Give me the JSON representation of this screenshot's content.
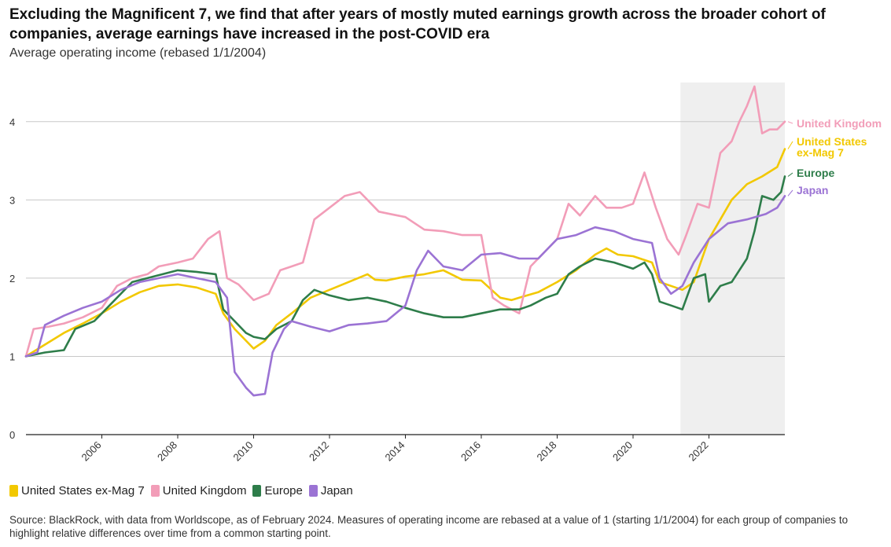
{
  "title": "Excluding the Magnificent 7, we find that after years of mostly muted earnings growth across the broader cohort of companies, average earnings have increased in the post-COVID era",
  "subtitle": "Average operating income (rebased 1/1/2004)",
  "source": "Source: BlackRock, with data from Worldscope, as of February 2024. Measures of operating income are rebased at a value of 1 (starting 1/1/2004) for each group of companies to highlight relative differences over time from a common starting point.",
  "chart_data": {
    "type": "line",
    "title": "Excluding the Magnificent 7, we find that after years of mostly muted earnings growth across the broader cohort of companies, average earnings have increased in the post-COVID era",
    "subtitle": "Average operating income (rebased 1/1/2004)",
    "xlabel": "",
    "ylabel": "",
    "xlim": [
      2004,
      2024
    ],
    "ylim": [
      0,
      4.5
    ],
    "x_ticks": [
      2006,
      2008,
      2010,
      2012,
      2014,
      2016,
      2018,
      2020,
      2022
    ],
    "y_ticks": [
      0,
      1,
      2,
      3,
      4
    ],
    "grid": "horizontal",
    "legend_position": "bottom-left",
    "highlight_region": {
      "from": 2021.25,
      "to": 2024
    },
    "series": [
      {
        "name": "United States ex-Mag 7",
        "end_label": [
          "United States",
          "ex-Mag 7"
        ],
        "color": "#f2c800",
        "points": [
          [
            2004.0,
            1.0
          ],
          [
            2004.5,
            1.15
          ],
          [
            2005.0,
            1.3
          ],
          [
            2005.5,
            1.42
          ],
          [
            2006.0,
            1.55
          ],
          [
            2006.5,
            1.7
          ],
          [
            2007.0,
            1.82
          ],
          [
            2007.5,
            1.9
          ],
          [
            2008.0,
            1.92
          ],
          [
            2008.5,
            1.88
          ],
          [
            2009.0,
            1.8
          ],
          [
            2009.2,
            1.55
          ],
          [
            2009.5,
            1.35
          ],
          [
            2009.8,
            1.2
          ],
          [
            2010.0,
            1.1
          ],
          [
            2010.3,
            1.2
          ],
          [
            2010.6,
            1.4
          ],
          [
            2011.0,
            1.55
          ],
          [
            2011.5,
            1.75
          ],
          [
            2012.0,
            1.85
          ],
          [
            2012.5,
            1.95
          ],
          [
            2013.0,
            2.05
          ],
          [
            2013.2,
            1.98
          ],
          [
            2013.5,
            1.97
          ],
          [
            2014.0,
            2.02
          ],
          [
            2014.5,
            2.05
          ],
          [
            2015.0,
            2.1
          ],
          [
            2015.5,
            1.98
          ],
          [
            2016.0,
            1.97
          ],
          [
            2016.5,
            1.75
          ],
          [
            2016.8,
            1.72
          ],
          [
            2017.0,
            1.75
          ],
          [
            2017.5,
            1.82
          ],
          [
            2018.0,
            1.95
          ],
          [
            2018.5,
            2.1
          ],
          [
            2019.0,
            2.3
          ],
          [
            2019.3,
            2.38
          ],
          [
            2019.6,
            2.3
          ],
          [
            2020.0,
            2.28
          ],
          [
            2020.5,
            2.2
          ],
          [
            2020.7,
            1.95
          ],
          [
            2021.0,
            1.9
          ],
          [
            2021.3,
            1.85
          ],
          [
            2021.6,
            1.95
          ],
          [
            2022.0,
            2.5
          ],
          [
            2022.3,
            2.75
          ],
          [
            2022.6,
            3.0
          ],
          [
            2023.0,
            3.2
          ],
          [
            2023.4,
            3.3
          ],
          [
            2023.8,
            3.42
          ],
          [
            2024.0,
            3.65
          ]
        ]
      },
      {
        "name": "United Kingdom",
        "end_label": [
          "United Kingdom"
        ],
        "color": "#f29db8",
        "points": [
          [
            2004.0,
            1.0
          ],
          [
            2004.2,
            1.35
          ],
          [
            2004.6,
            1.38
          ],
          [
            2005.0,
            1.42
          ],
          [
            2005.5,
            1.5
          ],
          [
            2006.0,
            1.62
          ],
          [
            2006.4,
            1.9
          ],
          [
            2006.8,
            2.0
          ],
          [
            2007.2,
            2.05
          ],
          [
            2007.5,
            2.15
          ],
          [
            2008.0,
            2.2
          ],
          [
            2008.4,
            2.25
          ],
          [
            2008.8,
            2.5
          ],
          [
            2009.1,
            2.6
          ],
          [
            2009.3,
            2.0
          ],
          [
            2009.6,
            1.92
          ],
          [
            2010.0,
            1.72
          ],
          [
            2010.4,
            1.8
          ],
          [
            2010.7,
            2.1
          ],
          [
            2011.0,
            2.15
          ],
          [
            2011.3,
            2.2
          ],
          [
            2011.6,
            2.75
          ],
          [
            2012.0,
            2.9
          ],
          [
            2012.4,
            3.05
          ],
          [
            2012.8,
            3.1
          ],
          [
            2013.0,
            3.0
          ],
          [
            2013.3,
            2.85
          ],
          [
            2013.6,
            2.82
          ],
          [
            2014.0,
            2.78
          ],
          [
            2014.5,
            2.62
          ],
          [
            2015.0,
            2.6
          ],
          [
            2015.5,
            2.55
          ],
          [
            2016.0,
            2.55
          ],
          [
            2016.3,
            1.75
          ],
          [
            2016.6,
            1.65
          ],
          [
            2017.0,
            1.55
          ],
          [
            2017.3,
            2.15
          ],
          [
            2017.7,
            2.35
          ],
          [
            2018.0,
            2.5
          ],
          [
            2018.3,
            2.95
          ],
          [
            2018.6,
            2.8
          ],
          [
            2019.0,
            3.05
          ],
          [
            2019.3,
            2.9
          ],
          [
            2019.7,
            2.9
          ],
          [
            2020.0,
            2.95
          ],
          [
            2020.3,
            3.35
          ],
          [
            2020.6,
            2.9
          ],
          [
            2020.9,
            2.5
          ],
          [
            2021.2,
            2.3
          ],
          [
            2021.4,
            2.55
          ],
          [
            2021.7,
            2.95
          ],
          [
            2022.0,
            2.9
          ],
          [
            2022.3,
            3.6
          ],
          [
            2022.6,
            3.75
          ],
          [
            2022.8,
            4.0
          ],
          [
            2023.0,
            4.2
          ],
          [
            2023.2,
            4.45
          ],
          [
            2023.4,
            3.85
          ],
          [
            2023.6,
            3.9
          ],
          [
            2023.8,
            3.9
          ],
          [
            2024.0,
            4.0
          ]
        ]
      },
      {
        "name": "Europe",
        "end_label": [
          "Europe"
        ],
        "color": "#2e7d4a",
        "points": [
          [
            2004.0,
            1.0
          ],
          [
            2004.5,
            1.05
          ],
          [
            2005.0,
            1.08
          ],
          [
            2005.3,
            1.35
          ],
          [
            2005.8,
            1.45
          ],
          [
            2006.0,
            1.55
          ],
          [
            2006.4,
            1.75
          ],
          [
            2006.8,
            1.95
          ],
          [
            2007.2,
            2.0
          ],
          [
            2007.6,
            2.05
          ],
          [
            2008.0,
            2.1
          ],
          [
            2008.5,
            2.08
          ],
          [
            2009.0,
            2.05
          ],
          [
            2009.2,
            1.6
          ],
          [
            2009.5,
            1.45
          ],
          [
            2009.8,
            1.3
          ],
          [
            2010.0,
            1.25
          ],
          [
            2010.3,
            1.22
          ],
          [
            2010.6,
            1.35
          ],
          [
            2011.0,
            1.45
          ],
          [
            2011.3,
            1.72
          ],
          [
            2011.6,
            1.85
          ],
          [
            2012.0,
            1.78
          ],
          [
            2012.5,
            1.72
          ],
          [
            2013.0,
            1.75
          ],
          [
            2013.5,
            1.7
          ],
          [
            2014.0,
            1.62
          ],
          [
            2014.5,
            1.55
          ],
          [
            2015.0,
            1.5
          ],
          [
            2015.5,
            1.5
          ],
          [
            2016.0,
            1.55
          ],
          [
            2016.5,
            1.6
          ],
          [
            2017.0,
            1.6
          ],
          [
            2017.3,
            1.65
          ],
          [
            2017.7,
            1.75
          ],
          [
            2018.0,
            1.8
          ],
          [
            2018.3,
            2.05
          ],
          [
            2018.6,
            2.15
          ],
          [
            2019.0,
            2.25
          ],
          [
            2019.5,
            2.2
          ],
          [
            2020.0,
            2.12
          ],
          [
            2020.3,
            2.2
          ],
          [
            2020.5,
            2.05
          ],
          [
            2020.7,
            1.7
          ],
          [
            2021.0,
            1.65
          ],
          [
            2021.3,
            1.6
          ],
          [
            2021.6,
            2.0
          ],
          [
            2021.9,
            2.05
          ],
          [
            2022.0,
            1.7
          ],
          [
            2022.3,
            1.9
          ],
          [
            2022.6,
            1.95
          ],
          [
            2023.0,
            2.25
          ],
          [
            2023.2,
            2.6
          ],
          [
            2023.4,
            3.05
          ],
          [
            2023.7,
            3.0
          ],
          [
            2023.9,
            3.1
          ],
          [
            2024.0,
            3.3
          ]
        ]
      },
      {
        "name": "Japan",
        "end_label": [
          "Japan"
        ],
        "color": "#9b73d4",
        "points": [
          [
            2004.0,
            1.0
          ],
          [
            2004.3,
            1.05
          ],
          [
            2004.5,
            1.4
          ],
          [
            2005.0,
            1.52
          ],
          [
            2005.5,
            1.62
          ],
          [
            2006.0,
            1.7
          ],
          [
            2006.5,
            1.85
          ],
          [
            2007.0,
            1.95
          ],
          [
            2007.5,
            2.0
          ],
          [
            2008.0,
            2.05
          ],
          [
            2008.5,
            2.0
          ],
          [
            2009.0,
            1.95
          ],
          [
            2009.3,
            1.75
          ],
          [
            2009.5,
            0.8
          ],
          [
            2009.8,
            0.6
          ],
          [
            2010.0,
            0.5
          ],
          [
            2010.3,
            0.52
          ],
          [
            2010.5,
            1.05
          ],
          [
            2010.8,
            1.35
          ],
          [
            2011.0,
            1.45
          ],
          [
            2011.5,
            1.38
          ],
          [
            2012.0,
            1.32
          ],
          [
            2012.5,
            1.4
          ],
          [
            2013.0,
            1.42
          ],
          [
            2013.5,
            1.45
          ],
          [
            2014.0,
            1.65
          ],
          [
            2014.3,
            2.1
          ],
          [
            2014.6,
            2.35
          ],
          [
            2015.0,
            2.15
          ],
          [
            2015.5,
            2.1
          ],
          [
            2016.0,
            2.3
          ],
          [
            2016.5,
            2.32
          ],
          [
            2017.0,
            2.25
          ],
          [
            2017.5,
            2.25
          ],
          [
            2018.0,
            2.5
          ],
          [
            2018.5,
            2.55
          ],
          [
            2019.0,
            2.65
          ],
          [
            2019.5,
            2.6
          ],
          [
            2020.0,
            2.5
          ],
          [
            2020.5,
            2.45
          ],
          [
            2020.7,
            2.0
          ],
          [
            2021.0,
            1.8
          ],
          [
            2021.3,
            1.9
          ],
          [
            2021.6,
            2.2
          ],
          [
            2022.0,
            2.5
          ],
          [
            2022.5,
            2.7
          ],
          [
            2023.0,
            2.75
          ],
          [
            2023.5,
            2.82
          ],
          [
            2023.8,
            2.9
          ],
          [
            2024.0,
            3.05
          ]
        ]
      }
    ]
  }
}
